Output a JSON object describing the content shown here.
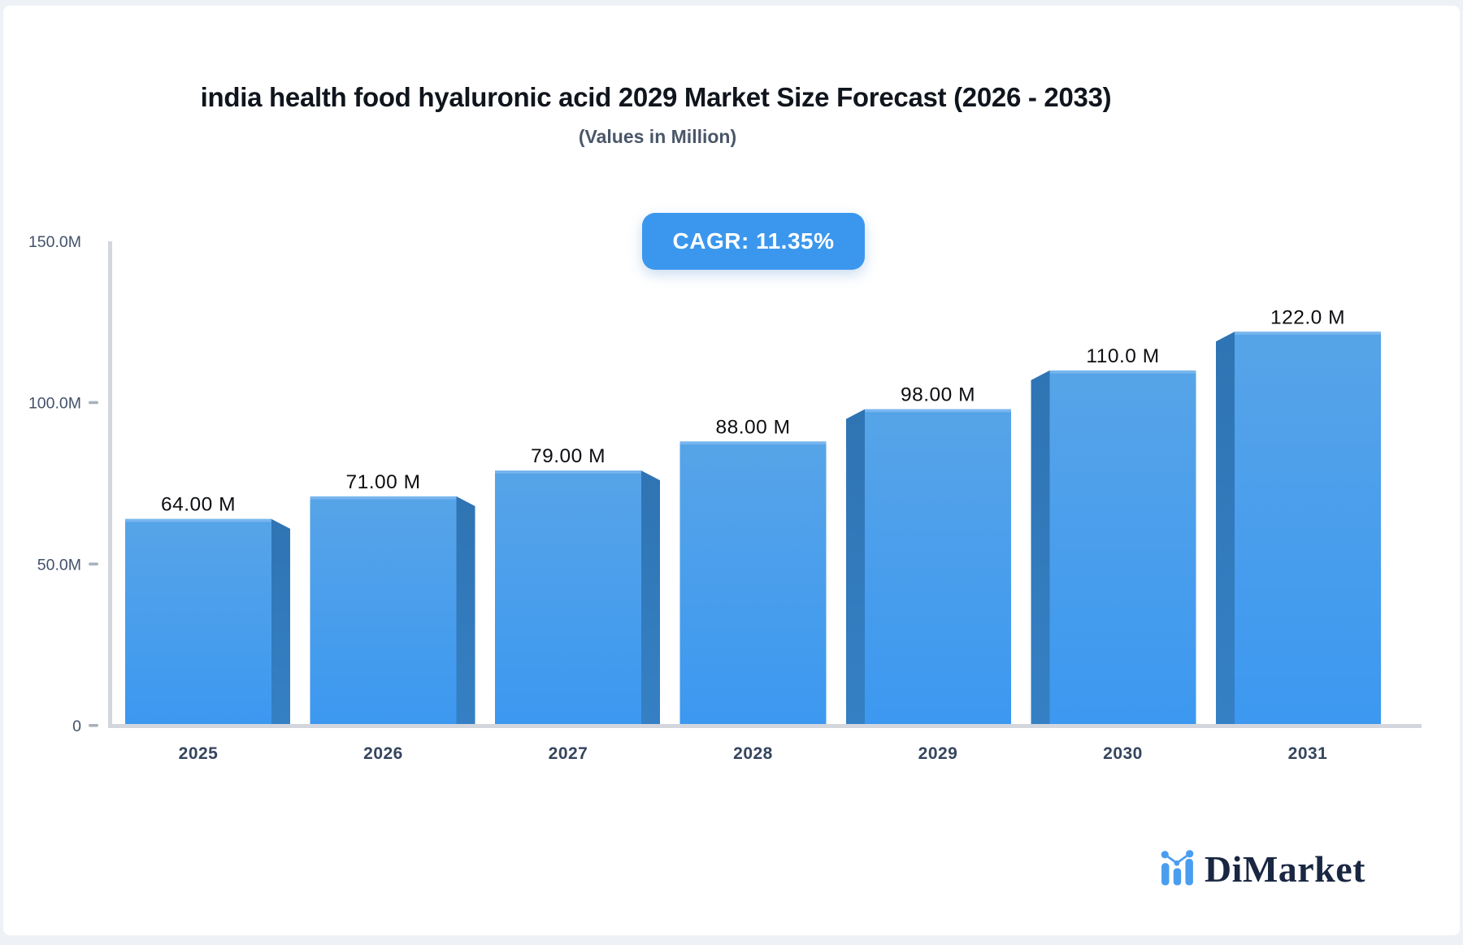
{
  "page": {
    "background": "#eef1f5",
    "card_background": "#ffffff"
  },
  "header": {
    "title": "india health food hyaluronic acid 2029 Market Size Forecast (2026 - 2033)",
    "subtitle": "(Values in Million)"
  },
  "cagr_badge": {
    "label": "CAGR: 11.35%",
    "background": "#3b97ee",
    "text_color": "#ffffff"
  },
  "chart_data": {
    "type": "bar",
    "title": "india health food hyaluronic acid 2029 Market Size Forecast (2026 - 2033)",
    "subtitle": "(Values in Million)",
    "unit": "Million",
    "categories": [
      "2025",
      "2026",
      "2027",
      "2028",
      "2029",
      "2030",
      "2031"
    ],
    "values": [
      64,
      71,
      79,
      88,
      98,
      110,
      122
    ],
    "value_labels": [
      "64.00 M",
      "71.00 M",
      "79.00 M",
      "88.00 M",
      "98.00 M",
      "110.0 M",
      "122.0 M"
    ],
    "xlabel": "",
    "ylabel": "",
    "ylim": [
      0,
      150
    ],
    "y_ticks": [
      {
        "value": 0,
        "label": "0"
      },
      {
        "value": 50,
        "label": "50.0M"
      },
      {
        "value": 100,
        "label": "100.0M"
      },
      {
        "value": 150,
        "label": "150.0M"
      }
    ],
    "grid": false,
    "legend": false,
    "style_3d": "perspective from center: left bars show right side face, right bars show left side face",
    "colors": {
      "bar_face_top": "#57a4e8",
      "bar_face_bottom": "#3c98f0",
      "bar_side": "#2f74b3",
      "bar_top_highlight": "#7cb8f0",
      "axis_line": "#d3d7dd",
      "tick_dash": "#a9b1bd",
      "y_tick_label": "#42526b",
      "x_tick_label": "#35455e",
      "value_label": "#0c0e12"
    }
  },
  "logo": {
    "text": "DiMarket",
    "icon": "mini-bar-chart-icon",
    "icon_color": "#4a9ef0",
    "text_color": "#1a2742"
  }
}
